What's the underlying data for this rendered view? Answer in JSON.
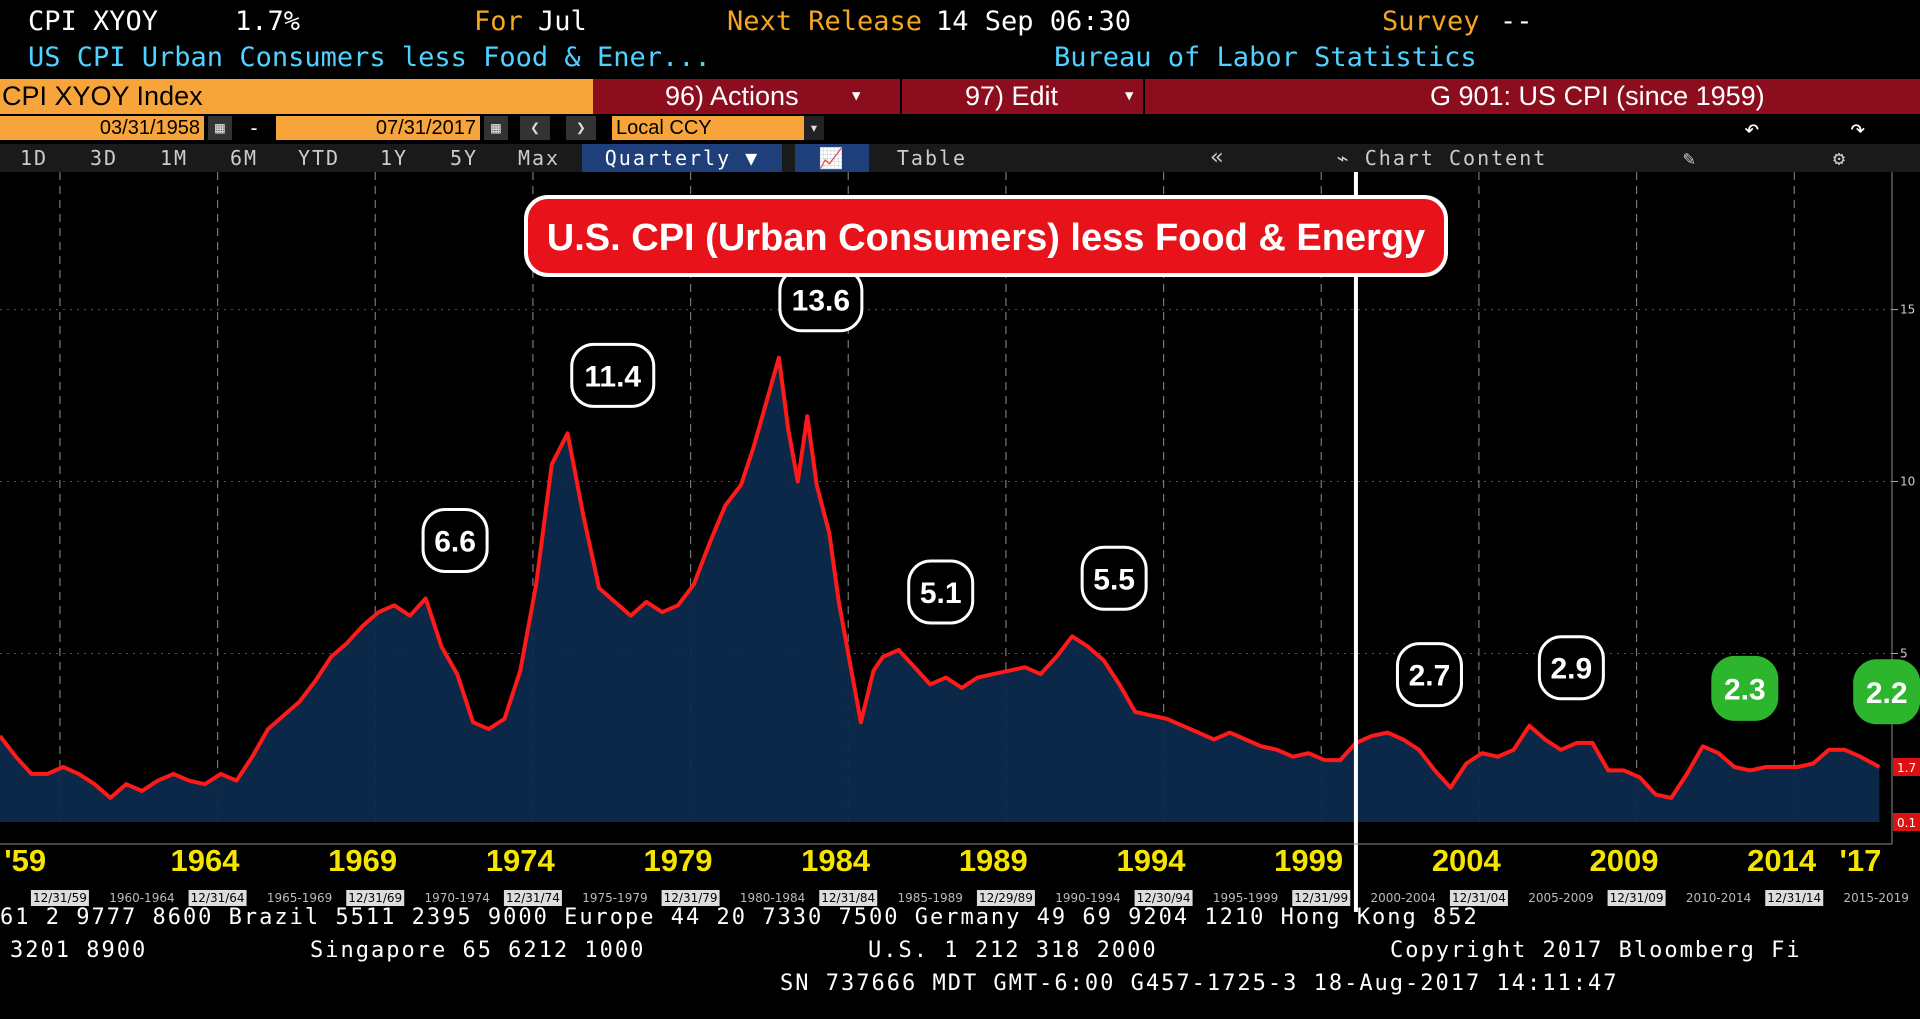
{
  "header": {
    "ticker": "CPI XYOY",
    "value": "1.7%",
    "for_label": "For",
    "for_value": "Jul",
    "next_label": "Next Release",
    "next_value": "14 Sep 06:30",
    "survey_label": "Survey",
    "survey_value": "--",
    "description": "US CPI Urban Consumers less Food & Ener...",
    "source": "Bureau of Labor Statistics"
  },
  "toolbar": {
    "index": "CPI XYOY Index",
    "actions": "96) Actions",
    "edit": "97) Edit",
    "chart_title": "G 901: US CPI (since 1959)"
  },
  "dates": {
    "start": "03/31/1958",
    "dash": "-",
    "end": "07/31/2017",
    "currency": "Local CCY"
  },
  "tabs": {
    "t1d": "1D",
    "t3d": "3D",
    "t1m": "1M",
    "t6m": "6M",
    "tytd": "YTD",
    "t1y": "1Y",
    "t5y": "5Y",
    "tmax": "Max",
    "freq": "Quarterly ▼",
    "table": "Table",
    "chart_content": "Chart Content"
  },
  "chart_data": {
    "type": "area",
    "title": "U.S. CPI (Urban Consumers) less Food & Energy",
    "ylim": [
      0.1,
      19
    ],
    "yticks": [
      5,
      10,
      15
    ],
    "last_value_label": "1.7",
    "min_label": "0.1",
    "series": [
      {
        "name": "CPI XYOY",
        "points": [
          [
            1958.0,
            2.6
          ],
          [
            1958.5,
            2.0
          ],
          [
            1959.0,
            1.5
          ],
          [
            1959.5,
            1.5
          ],
          [
            1960.0,
            1.7
          ],
          [
            1960.5,
            1.5
          ],
          [
            1961.0,
            1.2
          ],
          [
            1961.5,
            0.8
          ],
          [
            1962.0,
            1.2
          ],
          [
            1962.5,
            1.0
          ],
          [
            1963.0,
            1.3
          ],
          [
            1963.5,
            1.5
          ],
          [
            1964.0,
            1.3
          ],
          [
            1964.5,
            1.2
          ],
          [
            1965.0,
            1.5
          ],
          [
            1965.5,
            1.3
          ],
          [
            1966.0,
            2.0
          ],
          [
            1966.5,
            2.8
          ],
          [
            1967.0,
            3.2
          ],
          [
            1967.5,
            3.6
          ],
          [
            1968.0,
            4.2
          ],
          [
            1968.5,
            4.9
          ],
          [
            1969.0,
            5.3
          ],
          [
            1969.5,
            5.8
          ],
          [
            1970.0,
            6.2
          ],
          [
            1970.5,
            6.4
          ],
          [
            1971.0,
            6.1
          ],
          [
            1971.5,
            6.6
          ],
          [
            1972.0,
            5.2
          ],
          [
            1972.5,
            4.4
          ],
          [
            1973.0,
            3.0
          ],
          [
            1973.5,
            2.8
          ],
          [
            1974.0,
            3.1
          ],
          [
            1974.5,
            4.5
          ],
          [
            1975.0,
            7.0
          ],
          [
            1975.5,
            10.5
          ],
          [
            1976.0,
            11.4
          ],
          [
            1976.5,
            9.0
          ],
          [
            1977.0,
            6.9
          ],
          [
            1977.5,
            6.5
          ],
          [
            1978.0,
            6.1
          ],
          [
            1978.5,
            6.5
          ],
          [
            1979.0,
            6.2
          ],
          [
            1979.5,
            6.4
          ],
          [
            1980.0,
            7.0
          ],
          [
            1980.5,
            8.2
          ],
          [
            1981.0,
            9.3
          ],
          [
            1981.5,
            9.9
          ],
          [
            1981.9,
            11.0
          ],
          [
            1982.3,
            12.3
          ],
          [
            1982.7,
            13.6
          ],
          [
            1983.0,
            11.5
          ],
          [
            1983.3,
            10.0
          ],
          [
            1983.6,
            11.9
          ],
          [
            1983.9,
            9.9
          ],
          [
            1984.3,
            8.5
          ],
          [
            1984.6,
            6.5
          ],
          [
            1985.0,
            4.5
          ],
          [
            1985.3,
            3.0
          ],
          [
            1985.7,
            4.5
          ],
          [
            1986.0,
            4.9
          ],
          [
            1986.5,
            5.1
          ],
          [
            1987.0,
            4.6
          ],
          [
            1987.5,
            4.1
          ],
          [
            1988.0,
            4.3
          ],
          [
            1988.5,
            4.0
          ],
          [
            1989.0,
            4.3
          ],
          [
            1989.5,
            4.4
          ],
          [
            1990.0,
            4.5
          ],
          [
            1990.5,
            4.6
          ],
          [
            1991.0,
            4.4
          ],
          [
            1991.5,
            4.9
          ],
          [
            1992.0,
            5.5
          ],
          [
            1992.5,
            5.2
          ],
          [
            1993.0,
            4.8
          ],
          [
            1993.5,
            4.1
          ],
          [
            1994.0,
            3.3
          ],
          [
            1994.5,
            3.2
          ],
          [
            1995.0,
            3.1
          ],
          [
            1995.5,
            2.9
          ],
          [
            1996.0,
            2.7
          ],
          [
            1996.5,
            2.5
          ],
          [
            1997.0,
            2.7
          ],
          [
            1997.5,
            2.5
          ],
          [
            1998.0,
            2.3
          ],
          [
            1998.5,
            2.2
          ],
          [
            1999.0,
            2.0
          ],
          [
            1999.5,
            2.1
          ],
          [
            2000.0,
            1.9
          ],
          [
            2000.5,
            1.9
          ],
          [
            2001.0,
            2.4
          ],
          [
            2001.5,
            2.6
          ],
          [
            2002.0,
            2.7
          ],
          [
            2002.5,
            2.5
          ],
          [
            2003.0,
            2.2
          ],
          [
            2003.5,
            1.6
          ],
          [
            2004.0,
            1.1
          ],
          [
            2004.5,
            1.8
          ],
          [
            2005.0,
            2.1
          ],
          [
            2005.5,
            2.0
          ],
          [
            2006.0,
            2.2
          ],
          [
            2006.5,
            2.9
          ],
          [
            2007.0,
            2.5
          ],
          [
            2007.5,
            2.2
          ],
          [
            2008.0,
            2.4
          ],
          [
            2008.5,
            2.4
          ],
          [
            2009.0,
            1.6
          ],
          [
            2009.5,
            1.6
          ],
          [
            2010.0,
            1.4
          ],
          [
            2010.5,
            0.9
          ],
          [
            2011.0,
            0.8
          ],
          [
            2011.5,
            1.5
          ],
          [
            2012.0,
            2.3
          ],
          [
            2012.5,
            2.1
          ],
          [
            2013.0,
            1.7
          ],
          [
            2013.5,
            1.6
          ],
          [
            2014.0,
            1.7
          ],
          [
            2014.5,
            1.7
          ],
          [
            2015.0,
            1.7
          ],
          [
            2015.5,
            1.8
          ],
          [
            2016.0,
            2.2
          ],
          [
            2016.5,
            2.2
          ],
          [
            2017.0,
            2.0
          ],
          [
            2017.6,
            1.7
          ]
        ]
      }
    ],
    "annotations": [
      {
        "label": "6.6",
        "year": 1971.1,
        "value": 6.6,
        "color": "#000000"
      },
      {
        "label": "11.4",
        "year": 1976.1,
        "value": 11.4,
        "color": "#000000"
      },
      {
        "label": "13.6",
        "year": 1982.7,
        "value": 13.6,
        "color": "#000000"
      },
      {
        "label": "5.1",
        "year": 1986.5,
        "value": 5.1,
        "color": "#000000"
      },
      {
        "label": "5.5",
        "year": 1992.0,
        "value": 5.5,
        "color": "#000000"
      },
      {
        "label": "2.7",
        "year": 2002.0,
        "value": 2.7,
        "color": "#000000"
      },
      {
        "label": "2.9",
        "year": 2006.5,
        "value": 2.9,
        "color": "#000000"
      },
      {
        "label": "2.3",
        "year": 2012.0,
        "value": 2.3,
        "color": "#2db52d"
      },
      {
        "label": "2.2",
        "year": 2016.5,
        "value": 2.2,
        "color": "#2db52d"
      }
    ],
    "year_labels": [
      {
        "label": "'59",
        "year": 1958.8
      },
      {
        "label": "1964",
        "year": 1964.5
      },
      {
        "label": "1969",
        "year": 1969.5
      },
      {
        "label": "1974",
        "year": 1974.5
      },
      {
        "label": "1979",
        "year": 1979.5
      },
      {
        "label": "1984",
        "year": 1984.5
      },
      {
        "label": "1989",
        "year": 1989.5
      },
      {
        "label": "1994",
        "year": 1994.5
      },
      {
        "label": "1999",
        "year": 1999.5
      },
      {
        "label": "2004",
        "year": 2004.5
      },
      {
        "label": "2009",
        "year": 2009.5
      },
      {
        "label": "2014",
        "year": 2014.5
      },
      {
        "label": "'17",
        "year": 2017.0
      }
    ],
    "ranges": [
      "1960-1964",
      "1965-1969",
      "1970-1974",
      "1975-1979",
      "1980-1984",
      "1985-1989",
      "1990-1994",
      "1995-1999",
      "2000-2004",
      "2005-2009",
      "2010-2014",
      "2015-2019"
    ],
    "range_starts": [
      1960,
      1965,
      1970,
      1975,
      1980,
      1985,
      1990,
      1995,
      2000,
      2005,
      2010,
      2015
    ],
    "dividers": [
      "12/31/59",
      "12/31/64",
      "12/31/69",
      "12/31/74",
      "12/31/79",
      "12/31/84",
      "12/29/89",
      "12/30/94",
      "12/31/99",
      "12/31/04",
      "12/31/09",
      "12/31/14"
    ],
    "divider_years": [
      1959.9,
      1964.9,
      1969.9,
      1974.9,
      1979.9,
      1984.9,
      1989.9,
      1994.9,
      1999.9,
      2004.9,
      2009.9,
      2014.9
    ],
    "vertical_marker_year": 2001.0
  },
  "footer": {
    "line1": "61 2 9777 8600 Brazil 5511 2395 9000 Europe 44 20 7330 7500 Germany 49 69 9204 1210 Hong Kong 852",
    "line2a": "3201 8900",
    "line2b": "Singapore 65 6212 1000",
    "line2c": "U.S. 1 212 318 2000",
    "line2d": "Copyright 2017 Bloomberg Fi",
    "line3": "SN 737666 MDT  GMT-6:00 G457-1725-3 18-Aug-2017 14:11:47"
  }
}
